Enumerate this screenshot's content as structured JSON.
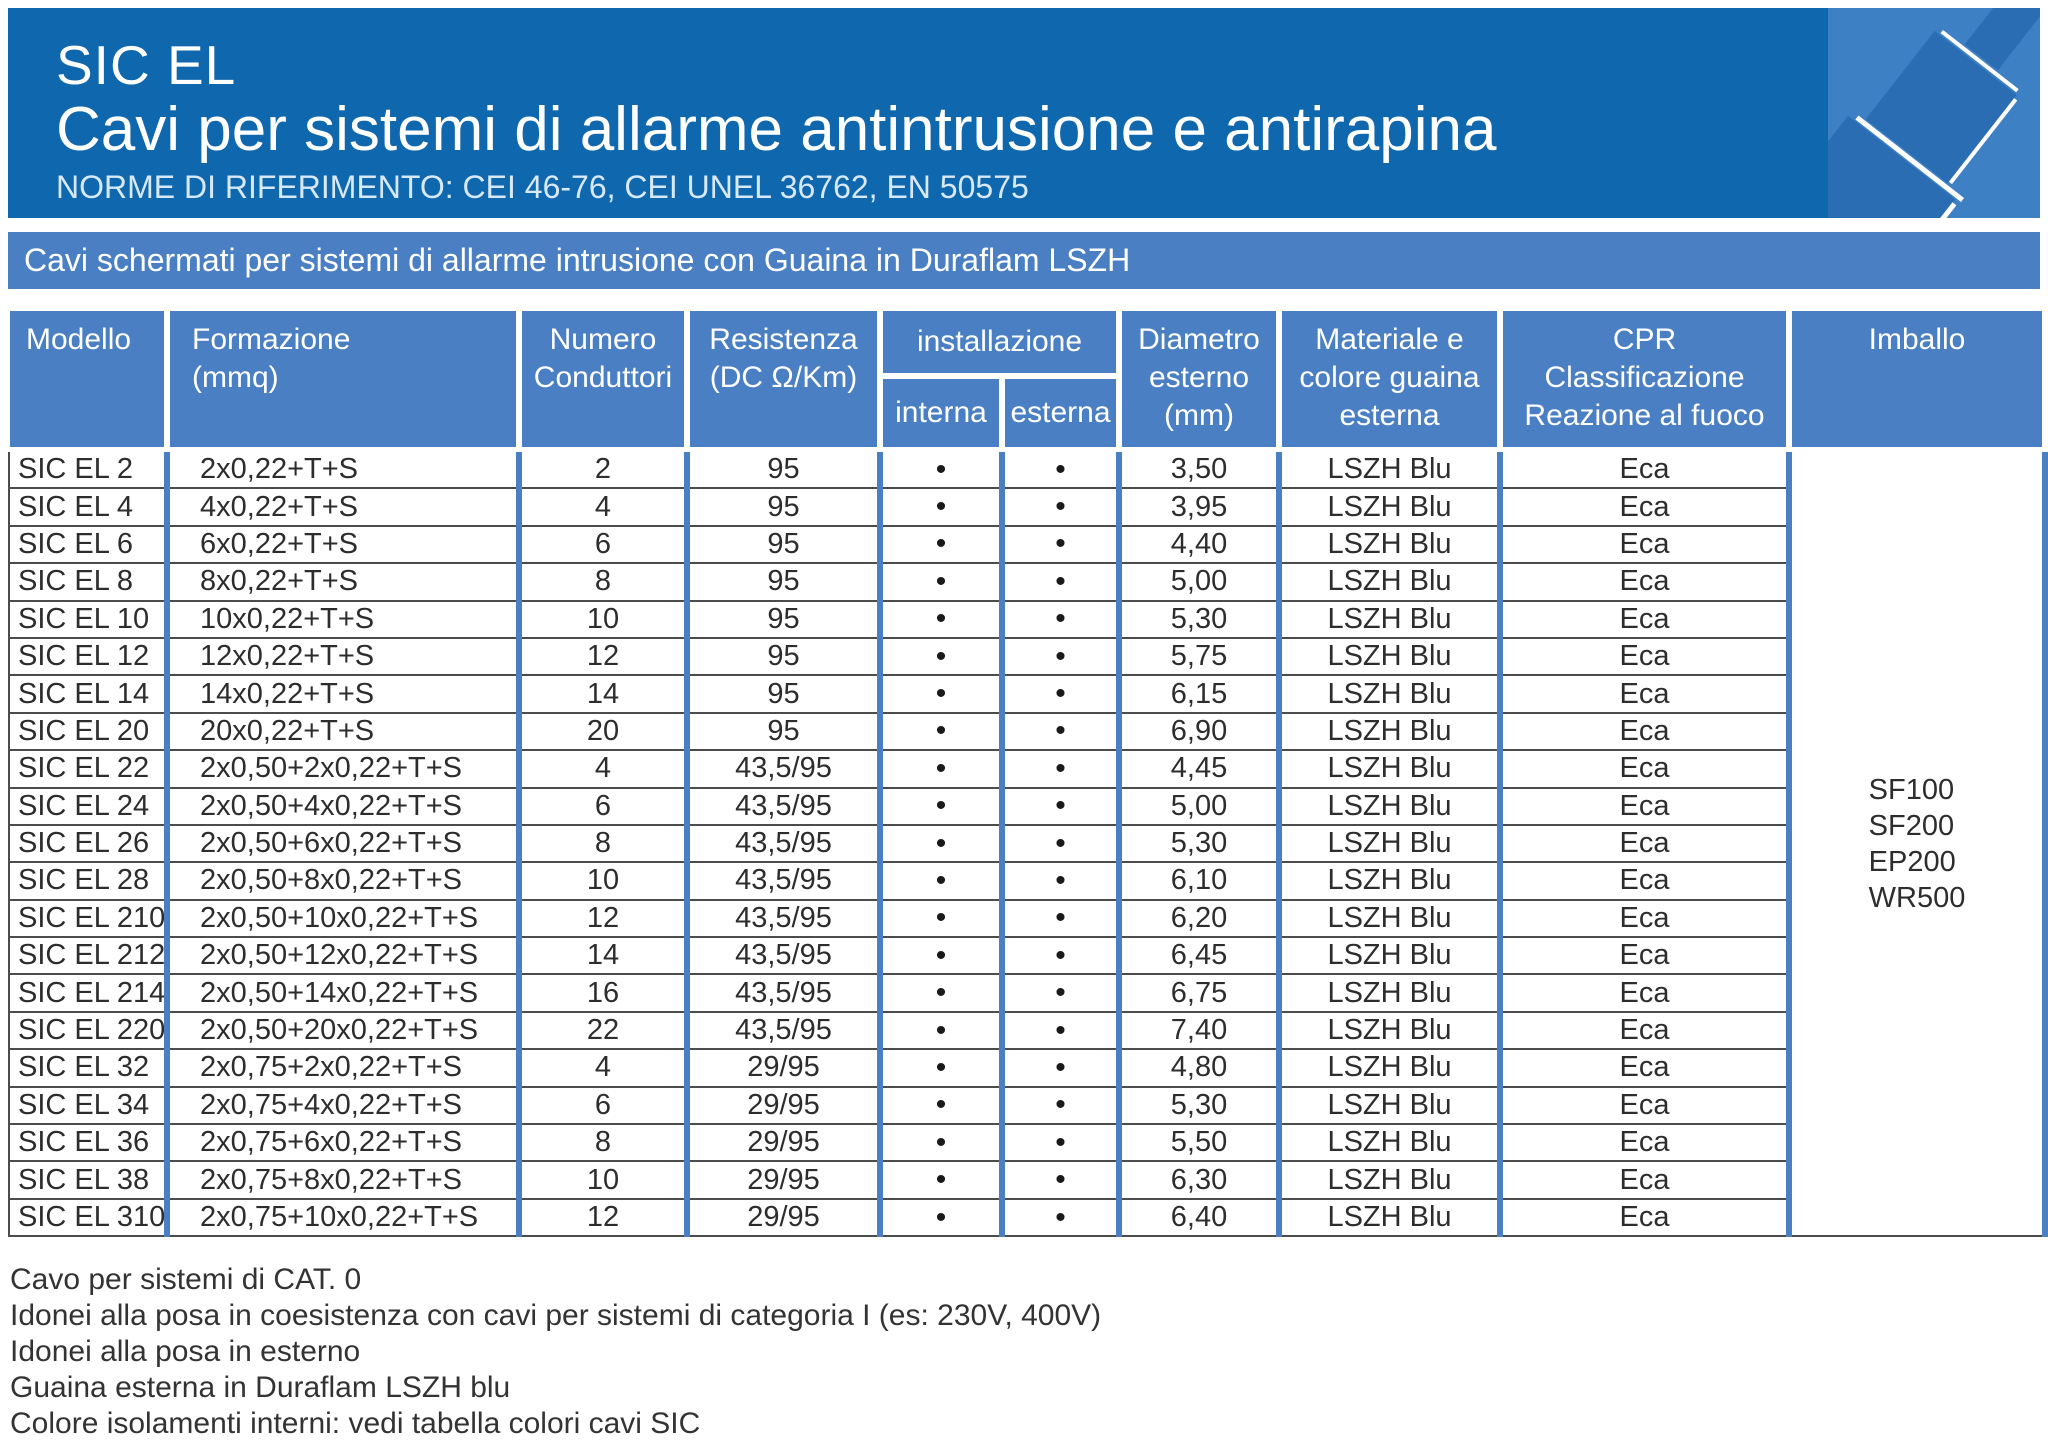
{
  "banner": {
    "title": "SIC EL",
    "subtitle": "Cavi per sistemi di allarme antintrusione e antirapina",
    "norms": "NORME DI RIFERIMENTO: CEI 46-76, CEI UNEL 36762, EN 50575"
  },
  "section_banner": {
    "text": "Cavi schermati per sistemi di allarme intrusione con Guaina in Duraflam LSZH"
  },
  "colors": {
    "banner_blue": "#0f67ae",
    "panel_blue": "#4a80c3",
    "icon_bg_blue": "#3d80c4",
    "icon_shape_blue": "#2a6db2",
    "row_line_gray": "#4c4c4c"
  },
  "table": {
    "columns": {
      "modello": "Modello",
      "formazione": "Formazione\n(mmq)",
      "numero": "Numero\nConduttori",
      "resistenza": "Resistenza\n(DC Ω/Km)",
      "installazione": "installazione",
      "interna": "interna",
      "esterna": "esterna",
      "diametro": "Diametro\nesterno\n(mm)",
      "materiale": "Materiale e\ncolore guaina\nesterna",
      "cpr": "CPR\nClassificazione\nReazione al fuoco",
      "imballo": "Imballo"
    },
    "rows": [
      {
        "modello": "SIC EL 2",
        "formazione": "2x0,22+T+S",
        "conduttori": "2",
        "resistenza": "95",
        "interna": "•",
        "esterna": "•",
        "diametro": "3,50",
        "guaina": "LSZH Blu",
        "cpr": "Eca"
      },
      {
        "modello": "SIC EL 4",
        "formazione": "4x0,22+T+S",
        "conduttori": "4",
        "resistenza": "95",
        "interna": "•",
        "esterna": "•",
        "diametro": "3,95",
        "guaina": "LSZH Blu",
        "cpr": "Eca"
      },
      {
        "modello": "SIC EL 6",
        "formazione": "6x0,22+T+S",
        "conduttori": "6",
        "resistenza": "95",
        "interna": "•",
        "esterna": "•",
        "diametro": "4,40",
        "guaina": "LSZH Blu",
        "cpr": "Eca"
      },
      {
        "modello": "SIC EL 8",
        "formazione": "8x0,22+T+S",
        "conduttori": "8",
        "resistenza": "95",
        "interna": "•",
        "esterna": "•",
        "diametro": "5,00",
        "guaina": "LSZH Blu",
        "cpr": "Eca"
      },
      {
        "modello": "SIC EL 10",
        "formazione": "10x0,22+T+S",
        "conduttori": "10",
        "resistenza": "95",
        "interna": "•",
        "esterna": "•",
        "diametro": "5,30",
        "guaina": "LSZH Blu",
        "cpr": "Eca"
      },
      {
        "modello": "SIC EL 12",
        "formazione": "12x0,22+T+S",
        "conduttori": "12",
        "resistenza": "95",
        "interna": "•",
        "esterna": "•",
        "diametro": "5,75",
        "guaina": "LSZH Blu",
        "cpr": "Eca"
      },
      {
        "modello": "SIC EL 14",
        "formazione": "14x0,22+T+S",
        "conduttori": "14",
        "resistenza": "95",
        "interna": "•",
        "esterna": "•",
        "diametro": "6,15",
        "guaina": "LSZH Blu",
        "cpr": "Eca"
      },
      {
        "modello": "SIC EL 20",
        "formazione": "20x0,22+T+S",
        "conduttori": "20",
        "resistenza": "95",
        "interna": "•",
        "esterna": "•",
        "diametro": "6,90",
        "guaina": "LSZH Blu",
        "cpr": "Eca"
      },
      {
        "modello": "SIC EL 22",
        "formazione": "2x0,50+2x0,22+T+S",
        "conduttori": "4",
        "resistenza": "43,5/95",
        "interna": "•",
        "esterna": "•",
        "diametro": "4,45",
        "guaina": "LSZH Blu",
        "cpr": "Eca"
      },
      {
        "modello": "SIC EL 24",
        "formazione": "2x0,50+4x0,22+T+S",
        "conduttori": "6",
        "resistenza": "43,5/95",
        "interna": "•",
        "esterna": "•",
        "diametro": "5,00",
        "guaina": "LSZH Blu",
        "cpr": "Eca"
      },
      {
        "modello": "SIC EL 26",
        "formazione": "2x0,50+6x0,22+T+S",
        "conduttori": "8",
        "resistenza": "43,5/95",
        "interna": "•",
        "esterna": "•",
        "diametro": "5,30",
        "guaina": "LSZH Blu",
        "cpr": "Eca"
      },
      {
        "modello": "SIC EL 28",
        "formazione": "2x0,50+8x0,22+T+S",
        "conduttori": "10",
        "resistenza": "43,5/95",
        "interna": "•",
        "esterna": "•",
        "diametro": "6,10",
        "guaina": "LSZH Blu",
        "cpr": "Eca"
      },
      {
        "modello": "SIC EL 210",
        "formazione": "2x0,50+10x0,22+T+S",
        "conduttori": "12",
        "resistenza": "43,5/95",
        "interna": "•",
        "esterna": "•",
        "diametro": "6,20",
        "guaina": "LSZH Blu",
        "cpr": "Eca"
      },
      {
        "modello": "SIC EL 212",
        "formazione": "2x0,50+12x0,22+T+S",
        "conduttori": "14",
        "resistenza": "43,5/95",
        "interna": "•",
        "esterna": "•",
        "diametro": "6,45",
        "guaina": "LSZH Blu",
        "cpr": "Eca"
      },
      {
        "modello": "SIC EL 214",
        "formazione": "2x0,50+14x0,22+T+S",
        "conduttori": "16",
        "resistenza": "43,5/95",
        "interna": "•",
        "esterna": "•",
        "diametro": "6,75",
        "guaina": "LSZH Blu",
        "cpr": "Eca"
      },
      {
        "modello": "SIC EL 220",
        "formazione": "2x0,50+20x0,22+T+S",
        "conduttori": "22",
        "resistenza": "43,5/95",
        "interna": "•",
        "esterna": "•",
        "diametro": "7,40",
        "guaina": "LSZH Blu",
        "cpr": "Eca"
      },
      {
        "modello": "SIC EL 32",
        "formazione": "2x0,75+2x0,22+T+S",
        "conduttori": "4",
        "resistenza": "29/95",
        "interna": "•",
        "esterna": "•",
        "diametro": "4,80",
        "guaina": "LSZH Blu",
        "cpr": "Eca"
      },
      {
        "modello": "SIC EL 34",
        "formazione": "2x0,75+4x0,22+T+S",
        "conduttori": "6",
        "resistenza": "29/95",
        "interna": "•",
        "esterna": "•",
        "diametro": "5,30",
        "guaina": "LSZH Blu",
        "cpr": "Eca"
      },
      {
        "modello": "SIC EL 36",
        "formazione": "2x0,75+6x0,22+T+S",
        "conduttori": "8",
        "resistenza": "29/95",
        "interna": "•",
        "esterna": "•",
        "diametro": "5,50",
        "guaina": "LSZH Blu",
        "cpr": "Eca"
      },
      {
        "modello": "SIC EL 38",
        "formazione": "2x0,75+8x0,22+T+S",
        "conduttori": "10",
        "resistenza": "29/95",
        "interna": "•",
        "esterna": "•",
        "diametro": "6,30",
        "guaina": "LSZH Blu",
        "cpr": "Eca"
      },
      {
        "modello": "SIC EL 310",
        "formazione": "2x0,75+10x0,22+T+S",
        "conduttori": "12",
        "resistenza": "29/95",
        "interna": "•",
        "esterna": "•",
        "diametro": "6,40",
        "guaina": "LSZH Blu",
        "cpr": "Eca"
      }
    ],
    "imballo_values": [
      "SF100",
      "SF200",
      "EP200",
      "WR500"
    ]
  },
  "notes": [
    "Cavo per sistemi di CAT. 0",
    "Idonei alla posa in coesistenza con cavi per sistemi di categoria I (es: 230V, 400V)",
    "Idonei alla posa in esterno",
    "Guaina esterna in Duraflam LSZH blu",
    "Colore isolamenti interni: vedi tabella colori cavi SIC"
  ]
}
